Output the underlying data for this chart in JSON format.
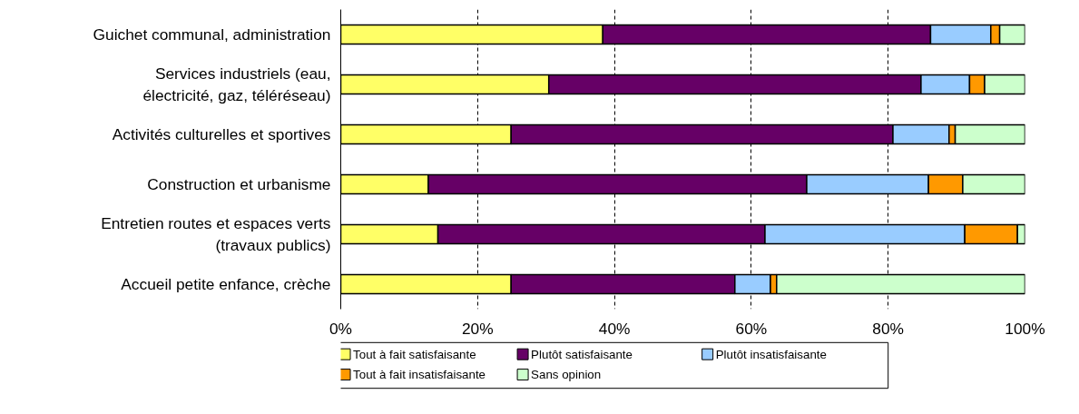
{
  "chart_data": {
    "type": "bar",
    "orientation": "horizontal",
    "stacked": true,
    "categories": [
      "Guichet communal, administration",
      "Services industriels (eau,\nélectricité, gaz, téléréseau)",
      "Activités culturelles et sportives",
      "Construction et urbanisme",
      "Entretien routes et espaces verts\n(travaux publics)",
      "Accueil petite enfance, crèche"
    ],
    "series": [
      {
        "name": "Tout à fait satisfaisante",
        "color": "#ffff66",
        "values": [
          38.3,
          30.4,
          24.9,
          12.8,
          14.2,
          24.9
        ]
      },
      {
        "name": "Plutôt satisfaisante",
        "color": "#660066",
        "values": [
          47.9,
          54.4,
          55.8,
          55.3,
          47.8,
          32.7
        ]
      },
      {
        "name": "Plutôt insatisfaisante",
        "color": "#99ccff",
        "values": [
          8.8,
          7.1,
          8.2,
          17.8,
          29.2,
          5.2
        ]
      },
      {
        "name": "Tout à fait insatisfaisante",
        "color": "#ff9900",
        "values": [
          1.3,
          2.2,
          0.9,
          5.0,
          7.7,
          0.9
        ]
      },
      {
        "name": "Sans opinion",
        "color": "#ccffcc",
        "values": [
          3.7,
          5.9,
          10.2,
          9.1,
          1.1,
          36.3
        ]
      }
    ],
    "xlim": [
      0,
      100
    ],
    "xticks": [
      {
        "value": 0,
        "label": "0%"
      },
      {
        "value": 20,
        "label": "20%"
      },
      {
        "value": 40,
        "label": "40%"
      },
      {
        "value": 60,
        "label": "60%"
      },
      {
        "value": 80,
        "label": "80%"
      },
      {
        "value": 100,
        "label": "100%"
      }
    ],
    "grid": "x",
    "legend": "bottom"
  }
}
